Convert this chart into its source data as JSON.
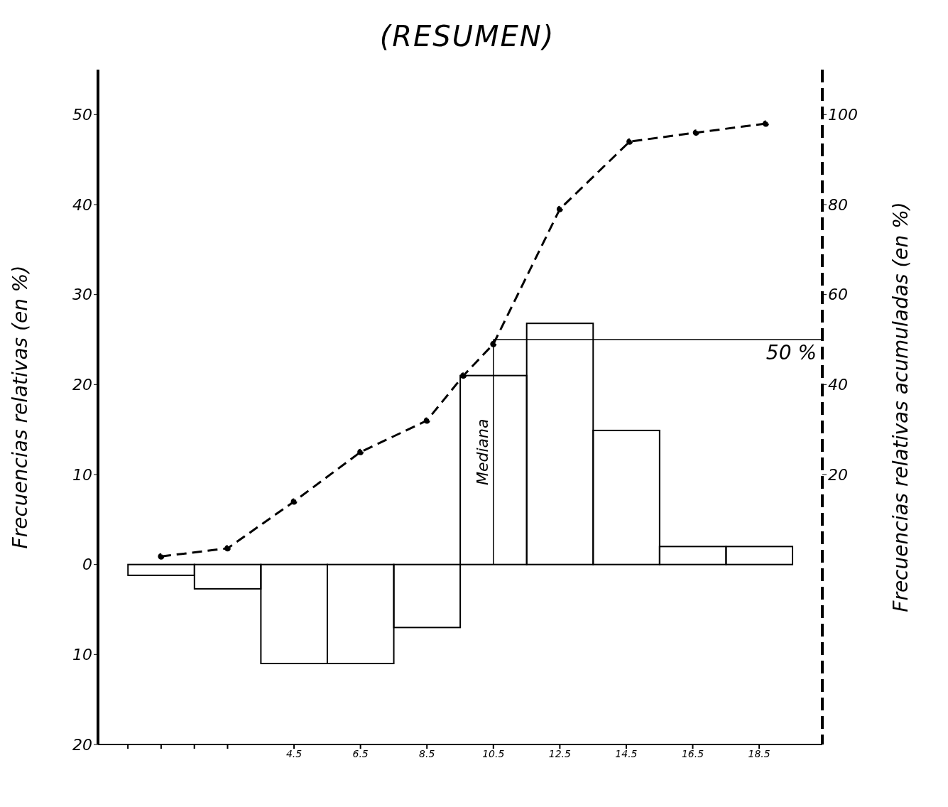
{
  "chart_data": {
    "type": "histogram",
    "title": "(RESUMEN)",
    "ylabel": "Frecuencias relativas (en %)",
    "y2label": "Frecuencias relativas acumuladas (en %)",
    "bins": [
      -0.5,
      1.5,
      3.5,
      5.5,
      7.5,
      9.5,
      11.5,
      13.5,
      15.5,
      17.5,
      19.5
    ],
    "values": [
      -1.2,
      -2.7,
      -11,
      -11,
      -7,
      21,
      26.8,
      14.9,
      2,
      2
    ],
    "color": "#000000",
    "series": [
      {
        "type": "line",
        "axis": "y2",
        "color": "#000000",
        "x": [
          0.5,
          2.5,
          4.5,
          6.5,
          8.5,
          9.6,
          10.5,
          12.5,
          14.6,
          16.6,
          18.7
        ],
        "values": [
          1.8,
          3.6,
          14,
          25,
          32,
          42,
          49,
          79,
          94,
          96,
          98
        ],
        "marker": "circle",
        "line_style": "dashed"
      }
    ],
    "xlim": [
      -1.4,
      20.4
    ],
    "xticks": [
      {
        "value": -0.5,
        "label": null
      },
      {
        "value": 0.5,
        "label": null
      },
      {
        "value": 1.5,
        "label": null
      },
      {
        "value": 2.5,
        "label": null
      },
      4.5,
      6.5,
      8.5,
      10.5,
      12.5,
      14.5,
      16.5,
      18.5
    ],
    "ylim": [
      -20,
      55
    ],
    "yticks": [
      {
        "value": -20,
        "label": "20"
      },
      {
        "value": -10,
        "label": "10"
      },
      0,
      10,
      20,
      30,
      40,
      50
    ],
    "y2lim": [
      -40,
      110
    ],
    "y2ticks": [
      20,
      40,
      60,
      80,
      100
    ],
    "ref_lines": [
      {
        "axis": "y2",
        "value": 50,
        "label": "50 %"
      },
      {
        "axis": "x",
        "value": 10.5,
        "label": "Mediana"
      }
    ],
    "grid": false
  }
}
